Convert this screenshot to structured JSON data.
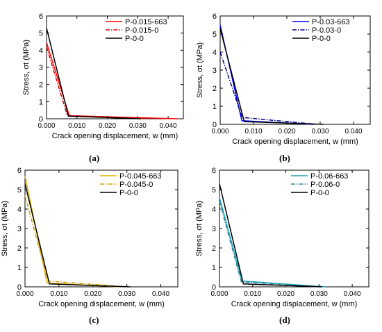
{
  "chart_data": [
    {
      "type": "line",
      "panel_label": "(a)",
      "xlabel": "Crack opening displacement, w (mm)",
      "ylabel": "Stress, σt (MPa)",
      "xlim": [
        0,
        0.045
      ],
      "ylim": [
        0,
        6
      ],
      "x_ticks": [
        "0.000",
        "0.010",
        "0.020",
        "0.030",
        "0.040"
      ],
      "y_ticks": [
        "0",
        "1",
        "2",
        "3",
        "4",
        "5",
        "6"
      ],
      "legend_position": "top-right",
      "series": [
        {
          "name": "P-0.015-663",
          "color": "#ff0000",
          "dash": "solid",
          "points": [
            [
              0,
              4.45
            ],
            [
              0.0075,
              0.18
            ],
            [
              0.043,
              0
            ]
          ]
        },
        {
          "name": "P-0.015-0",
          "color": "#dd0000",
          "dash": "dashdot",
          "points": [
            [
              0,
              4.2
            ],
            [
              0.0068,
              0.2
            ],
            [
              0.034,
              0
            ]
          ]
        },
        {
          "name": "P-0-0",
          "color": "#000000",
          "dash": "solid",
          "points": [
            [
              0,
              5.3
            ],
            [
              0.0072,
              0.15
            ],
            [
              0.031,
              0
            ]
          ]
        }
      ]
    },
    {
      "type": "line",
      "panel_label": "(b)",
      "xlabel": "Crack opening displacement, w (mm)",
      "ylabel": "Stress, σt (MPa)",
      "xlim": [
        0,
        0.045
      ],
      "ylim": [
        0,
        6
      ],
      "x_ticks": [
        "0.000",
        "0.010",
        "0.020",
        "0.030",
        "0.040"
      ],
      "y_ticks": [
        "0",
        "1",
        "2",
        "3",
        "4",
        "5",
        "6"
      ],
      "legend_position": "top-right",
      "series": [
        {
          "name": "P-0.03-663",
          "color": "#0000ff",
          "dash": "solid",
          "points": [
            [
              0,
              5.5
            ],
            [
              0.0065,
              0.2
            ],
            [
              0.028,
              0
            ]
          ]
        },
        {
          "name": "P-0.03-0",
          "color": "#00008b",
          "dash": "dashdot",
          "points": [
            [
              0,
              4.0
            ],
            [
              0.0066,
              0.38
            ],
            [
              0.029,
              0
            ]
          ]
        },
        {
          "name": "P-0-0",
          "color": "#000000",
          "dash": "solid",
          "points": [
            [
              0,
              5.3
            ],
            [
              0.0072,
              0.15
            ],
            [
              0.031,
              0
            ]
          ]
        }
      ]
    },
    {
      "type": "line",
      "panel_label": "(c)",
      "xlabel": "Crack opening displacement, w (mm)",
      "ylabel": "Stress, σt (MPa)",
      "xlim": [
        0,
        0.045
      ],
      "ylim": [
        0,
        6
      ],
      "x_ticks": [
        "0.000",
        "0.010",
        "0.020",
        "0.030",
        "0.040"
      ],
      "y_ticks": [
        "0",
        "1",
        "2",
        "3",
        "4",
        "5",
        "6"
      ],
      "legend_position": "top-right",
      "series": [
        {
          "name": "P-0.045-663",
          "color": "#e0b000",
          "dash": "solid",
          "points": [
            [
              0,
              5.7
            ],
            [
              0.0065,
              0.2
            ],
            [
              0.028,
              0
            ]
          ]
        },
        {
          "name": "P-0.045-0",
          "color": "#c8a000",
          "dash": "dashdot",
          "points": [
            [
              0,
              4.7
            ],
            [
              0.0068,
              0.3
            ],
            [
              0.03,
              0
            ]
          ]
        },
        {
          "name": "P-0-0",
          "color": "#000000",
          "dash": "solid",
          "points": [
            [
              0,
              5.3
            ],
            [
              0.0072,
              0.15
            ],
            [
              0.031,
              0
            ]
          ]
        }
      ]
    },
    {
      "type": "line",
      "panel_label": "(d)",
      "xlabel": "Crack opening displacement, w (mm)",
      "ylabel": "Stress, σt (MPa)",
      "xlim": [
        0,
        0.045
      ],
      "ylim": [
        0,
        6
      ],
      "x_ticks": [
        "0.000",
        "0.010",
        "0.020",
        "0.030",
        "0.040"
      ],
      "y_ticks": [
        "0",
        "1",
        "2",
        "3",
        "4",
        "5",
        "6"
      ],
      "legend_position": "top-right",
      "series": [
        {
          "name": "P-0.06-663",
          "color": "#1aa3b8",
          "dash": "solid",
          "points": [
            [
              0,
              4.6
            ],
            [
              0.0068,
              0.3
            ],
            [
              0.032,
              0
            ]
          ]
        },
        {
          "name": "P-0.06-0",
          "color": "#2a8a9a",
          "dash": "dashdot",
          "points": [
            [
              0,
              4.4
            ],
            [
              0.0066,
              0.25
            ],
            [
              0.03,
              0
            ]
          ]
        },
        {
          "name": "P-0-0",
          "color": "#000000",
          "dash": "solid",
          "points": [
            [
              0,
              5.3
            ],
            [
              0.0072,
              0.15
            ],
            [
              0.031,
              0
            ]
          ]
        }
      ]
    }
  ]
}
